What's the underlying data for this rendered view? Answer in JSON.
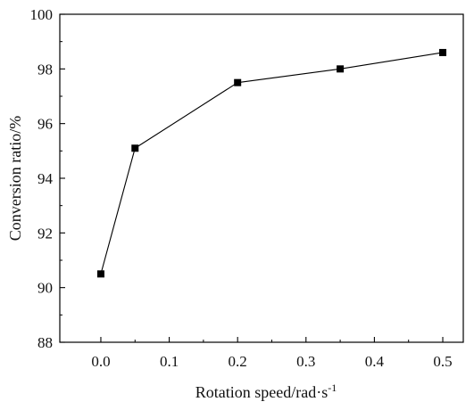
{
  "chart_data": {
    "type": "line",
    "title": "",
    "xlabel": "Rotation speed/rad·s",
    "xlabel_superscript": "-1",
    "ylabel": "Conversion ratio/%",
    "xlim": [
      -0.06,
      0.53
    ],
    "ylim": [
      88,
      100
    ],
    "x_ticks": [
      0.0,
      0.1,
      0.2,
      0.3,
      0.4,
      0.5
    ],
    "x_tick_labels": [
      "0.0",
      "0.1",
      "0.2",
      "0.3",
      "0.4",
      "0.5"
    ],
    "y_ticks": [
      88,
      90,
      92,
      94,
      96,
      98,
      100
    ],
    "y_tick_labels": [
      "88",
      "90",
      "92",
      "94",
      "96",
      "98",
      "100"
    ],
    "grid": false,
    "legend": "none",
    "marker": "square",
    "line_color": "#000000",
    "series": [
      {
        "x": [
          0.0,
          0.05,
          0.2,
          0.35,
          0.5
        ],
        "y": [
          90.5,
          95.1,
          97.5,
          98.0,
          98.6
        ]
      }
    ]
  }
}
